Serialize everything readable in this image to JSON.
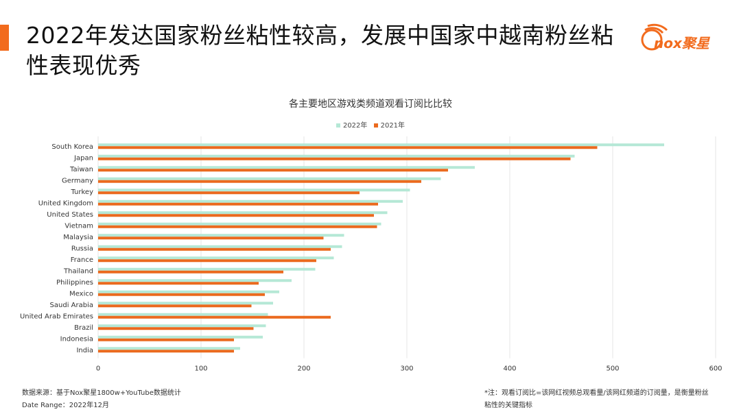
{
  "header": {
    "title": "2022年发达国家粉丝粘性较高，发展中国家中越南粉丝粘性表现优秀",
    "logo_text": "nox聚星"
  },
  "colors": {
    "accent": "#f26b1d",
    "series_2022": "#b5e8d6",
    "series_2021": "#eb6a1e"
  },
  "chart_data": {
    "type": "bar",
    "orientation": "horizontal",
    "title": "各主要地区游戏类频道观看订阅比比较",
    "categories": [
      "South Korea",
      "Japan",
      "Taiwan",
      "Germany",
      "Turkey",
      "United Kingdom",
      "United States",
      "Vietnam",
      "Malaysia",
      "Russia",
      "France",
      "Thailand",
      "Philippines",
      "Mexico",
      "Saudi Arabia",
      "United Arab Emirates",
      "Brazil",
      "Indonesia",
      "India"
    ],
    "series": [
      {
        "name": "2022年",
        "values": [
          550,
          463,
          366,
          333,
          303,
          296,
          281,
          275,
          239,
          237,
          229,
          211,
          188,
          176,
          170,
          165,
          163,
          160,
          138
        ]
      },
      {
        "name": "2021年",
        "values": [
          485,
          459,
          340,
          314,
          254,
          272,
          268,
          271,
          219,
          226,
          212,
          180,
          156,
          162,
          149,
          226,
          151,
          132,
          132
        ]
      }
    ],
    "xlim": [
      0,
      600
    ],
    "xticks": [
      "0",
      "100",
      "200",
      "300",
      "400",
      "500",
      "600"
    ],
    "grid": true,
    "legend_position": "top-center"
  },
  "footer": {
    "source": "数据来源：基于Nox聚星1800w+YouTube数据统计",
    "date_range": "Date Range：2022年12月",
    "note_line1": "*注：观看订阅比=该网红视频总观看量/该网红频道的订阅量，是衡量粉丝",
    "note_line2": "粘性的关键指标"
  }
}
